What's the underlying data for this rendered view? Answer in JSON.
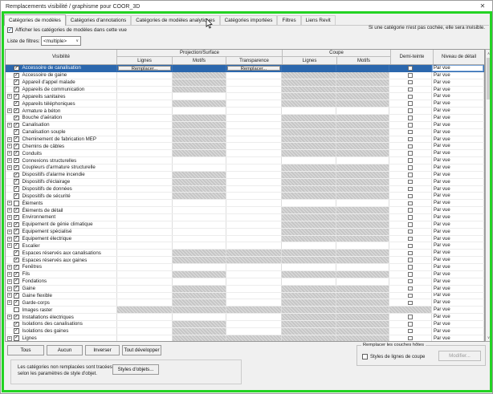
{
  "window": {
    "title": "Remplacements visibilité / graphisme pour COOR_3D"
  },
  "icons": {
    "close": "✕",
    "dropdown": "∨",
    "scroll_up": "∧",
    "scroll_down": "∨",
    "expand": "+",
    "check": "✓"
  },
  "tabs": [
    {
      "label": "Catégories de modèles",
      "active": true
    },
    {
      "label": "Catégories d'annotations",
      "active": false
    },
    {
      "label": "Catégories de modèles analytiques",
      "active": false
    },
    {
      "label": "Catégories importées",
      "active": false
    },
    {
      "label": "Filtres",
      "active": false
    },
    {
      "label": "Liens Revit",
      "active": false
    }
  ],
  "header": {
    "show_categories_label": "Afficher les catégories de modèles dans cette vue",
    "show_categories_checked": true,
    "invisible_note": "Si une catégorie n'est pas cochée, elle sera invisible.",
    "filter_label": "Liste de filtres:",
    "filter_value": "<multiple>"
  },
  "table": {
    "columns": {
      "visibility": "Visibilité",
      "projection_group": "Projection/Surface",
      "cut_group": "Coupe",
      "lines": "Lignes",
      "patterns": "Motifs",
      "transparency": "Transparence",
      "cut_lines": "Lignes",
      "cut_patterns": "Motifs",
      "halftone": "Demi-teinte",
      "detail_level": "Niveau de détail"
    },
    "override_button_label": "Remplacer...",
    "detail_level_value": "Par vue",
    "rows": [
      {
        "label": "Accessoire de canalisation",
        "checked": true,
        "expand": false,
        "selected": true,
        "hatch": [],
        "override_buttons": [
          "proj_lines",
          "transparency"
        ]
      },
      {
        "label": "Accessoire de gaine",
        "checked": true,
        "expand": false,
        "hatch": [
          "proj_patterns",
          "cut_lines",
          "cut_patterns"
        ]
      },
      {
        "label": "Appareil d'appel malade",
        "checked": true,
        "expand": false,
        "hatch": [
          "proj_patterns",
          "cut_lines",
          "cut_patterns"
        ]
      },
      {
        "label": "Appareils de communication",
        "checked": true,
        "expand": false,
        "hatch": [
          "proj_patterns",
          "cut_lines",
          "cut_patterns"
        ]
      },
      {
        "label": "Appareils sanitaires",
        "checked": true,
        "expand": true,
        "hatch": [
          "cut_lines",
          "cut_patterns"
        ]
      },
      {
        "label": "Appareils téléphoniques",
        "checked": true,
        "expand": false,
        "hatch": [
          "proj_patterns",
          "cut_lines",
          "cut_patterns"
        ]
      },
      {
        "label": "Armature à béton",
        "checked": true,
        "expand": true,
        "hatch": []
      },
      {
        "label": "Bouche d'aération",
        "checked": true,
        "expand": false,
        "hatch": [
          "proj_patterns",
          "cut_lines",
          "cut_patterns"
        ]
      },
      {
        "label": "Canalisation",
        "checked": true,
        "expand": true,
        "hatch": [
          "proj_patterns",
          "cut_lines",
          "cut_patterns"
        ]
      },
      {
        "label": "Canalisation souple",
        "checked": true,
        "expand": false,
        "hatch": [
          "proj_patterns",
          "cut_lines",
          "cut_patterns"
        ]
      },
      {
        "label": "Cheminement de fabrication MEP",
        "checked": true,
        "expand": true,
        "hatch": [
          "proj_patterns",
          "cut_lines",
          "cut_patterns"
        ]
      },
      {
        "label": "Chemins de câbles",
        "checked": true,
        "expand": true,
        "hatch": [
          "proj_patterns",
          "cut_lines",
          "cut_patterns"
        ]
      },
      {
        "label": "Conduits",
        "checked": true,
        "expand": true,
        "hatch": [
          "proj_patterns",
          "cut_lines",
          "cut_patterns"
        ]
      },
      {
        "label": "Connexions structurelles",
        "checked": true,
        "expand": true,
        "hatch": []
      },
      {
        "label": "Coupleurs d'armature structurelle",
        "checked": true,
        "expand": true,
        "hatch": [
          "cut_lines",
          "cut_patterns"
        ]
      },
      {
        "label": "Dispositifs d'alarme incendie",
        "checked": true,
        "expand": false,
        "hatch": [
          "proj_patterns",
          "cut_lines",
          "cut_patterns"
        ]
      },
      {
        "label": "Dispositifs d'éclairage",
        "checked": true,
        "expand": false,
        "hatch": [
          "proj_patterns",
          "cut_lines",
          "cut_patterns"
        ]
      },
      {
        "label": "Dispositifs de données",
        "checked": true,
        "expand": false,
        "hatch": [
          "proj_patterns",
          "cut_lines",
          "cut_patterns"
        ]
      },
      {
        "label": "Dispositifs de sécurité",
        "checked": true,
        "expand": false,
        "hatch": [
          "proj_patterns",
          "cut_lines",
          "cut_patterns"
        ]
      },
      {
        "label": "Éléments",
        "checked": false,
        "expand": true,
        "hatch": []
      },
      {
        "label": "Éléments de détail",
        "checked": true,
        "expand": true,
        "hatch": [
          "cut_lines",
          "cut_patterns"
        ]
      },
      {
        "label": "Environnement",
        "checked": true,
        "expand": true,
        "hatch": [
          "cut_lines",
          "cut_patterns"
        ]
      },
      {
        "label": "Equipement de génie climatique",
        "checked": true,
        "expand": true,
        "hatch": [
          "cut_lines",
          "cut_patterns"
        ]
      },
      {
        "label": "Equipement spécialisé",
        "checked": true,
        "expand": true,
        "hatch": [
          "cut_lines",
          "cut_patterns"
        ]
      },
      {
        "label": "Equipement électrique",
        "checked": true,
        "expand": true,
        "hatch": [
          "cut_lines",
          "cut_patterns"
        ]
      },
      {
        "label": "Escalier",
        "checked": true,
        "expand": true,
        "hatch": []
      },
      {
        "label": "Espaces réservés aux canalisations",
        "checked": true,
        "expand": false,
        "hatch": [
          "proj_patterns",
          "transparency",
          "cut_lines",
          "cut_patterns"
        ]
      },
      {
        "label": "Espaces réservés aux gaines",
        "checked": true,
        "expand": false,
        "hatch": [
          "proj_patterns",
          "transparency",
          "cut_lines",
          "cut_patterns"
        ]
      },
      {
        "label": "Fenêtres",
        "checked": true,
        "expand": true,
        "hatch": []
      },
      {
        "label": "Fils",
        "checked": true,
        "expand": true,
        "hatch": [
          "proj_patterns",
          "cut_lines",
          "cut_patterns"
        ]
      },
      {
        "label": "Fondations",
        "checked": true,
        "expand": true,
        "hatch": []
      },
      {
        "label": "Gaine",
        "checked": true,
        "expand": true,
        "hatch": [
          "proj_patterns",
          "cut_lines",
          "cut_patterns"
        ]
      },
      {
        "label": "Gaine flexible",
        "checked": true,
        "expand": true,
        "hatch": [
          "proj_patterns",
          "cut_lines",
          "cut_patterns"
        ]
      },
      {
        "label": "Garde-corps",
        "checked": true,
        "expand": true,
        "hatch": [
          "proj_patterns",
          "cut_lines",
          "cut_patterns"
        ]
      },
      {
        "label": "Images raster",
        "checked": false,
        "expand": false,
        "hatch": [
          "proj_lines",
          "proj_patterns",
          "transparency",
          "cut_lines",
          "cut_patterns",
          "halftone"
        ]
      },
      {
        "label": "Installations électriques",
        "checked": true,
        "expand": true,
        "hatch": [
          "cut_lines",
          "cut_patterns"
        ]
      },
      {
        "label": "Isolations des canalisations",
        "checked": true,
        "expand": false,
        "hatch": [
          "proj_patterns",
          "cut_lines",
          "cut_patterns"
        ]
      },
      {
        "label": "Isolations des gaines",
        "checked": true,
        "expand": false,
        "hatch": [
          "proj_patterns",
          "cut_lines",
          "cut_patterns"
        ]
      },
      {
        "label": "Lignes",
        "checked": true,
        "expand": true,
        "hatch": [
          "proj_patterns",
          "transparency",
          "cut_lines",
          "cut_patterns"
        ]
      }
    ]
  },
  "footer": {
    "buttons": [
      "Tous",
      "Aucun",
      "Inverser",
      "Tout développer"
    ],
    "object_styles_note_line1": "Les catégories non remplacées sont tracées",
    "object_styles_note_line2": "selon les paramètres de style d'objet.",
    "object_styles_button": "Styles d'objets...",
    "host_layers": {
      "legend": "Remplacer les couches hôtes",
      "checkbox_label": "Styles de lignes de coupe",
      "checkbox_checked": false,
      "modify_button": "Modifier...",
      "modify_enabled": false
    }
  },
  "colors": {
    "selection_blue": "#2b67ad",
    "highlight_green": "#23d323",
    "hatch_gray": "#c6c6c6"
  }
}
